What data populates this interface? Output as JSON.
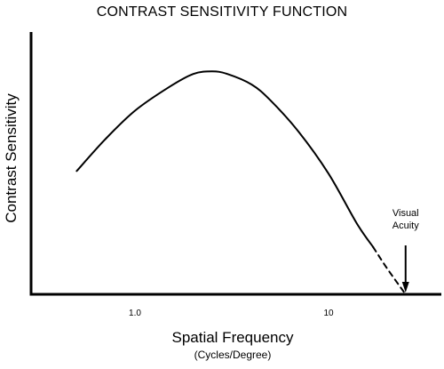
{
  "chart_data": {
    "type": "line",
    "title": "CONTRAST SENSITIVITY FUNCTION",
    "xlabel": "Spatial Frequency",
    "xlabel_unit": "(Cycles/Degree)",
    "ylabel": "Contrast Sensitivity",
    "x_scale": "log",
    "xlim": [
      0.3,
      40
    ],
    "ylim": [
      0,
      1
    ],
    "y_ticks_shown": false,
    "x_ticks": [
      {
        "value": 1.0,
        "label": "1.0"
      },
      {
        "value": 10,
        "label": "10"
      }
    ],
    "series": [
      {
        "style": "solid",
        "x": [
          0.5,
          0.7,
          1.0,
          1.5,
          2.0,
          2.5,
          3.0,
          4.0,
          5.0,
          7.0,
          10.0,
          14.0,
          17.0
        ],
        "y": [
          0.47,
          0.59,
          0.7,
          0.79,
          0.84,
          0.85,
          0.84,
          0.8,
          0.74,
          0.62,
          0.46,
          0.27,
          0.18
        ]
      },
      {
        "style": "dashed",
        "x": [
          17.0,
          20.0,
          25.0
        ],
        "y": [
          0.18,
          0.1,
          0.0
        ]
      }
    ],
    "annotations": [
      {
        "text": "Visual Acuity",
        "lines": [
          "Visual",
          "Acuity"
        ],
        "x": 25.0,
        "arrow": true
      }
    ]
  }
}
